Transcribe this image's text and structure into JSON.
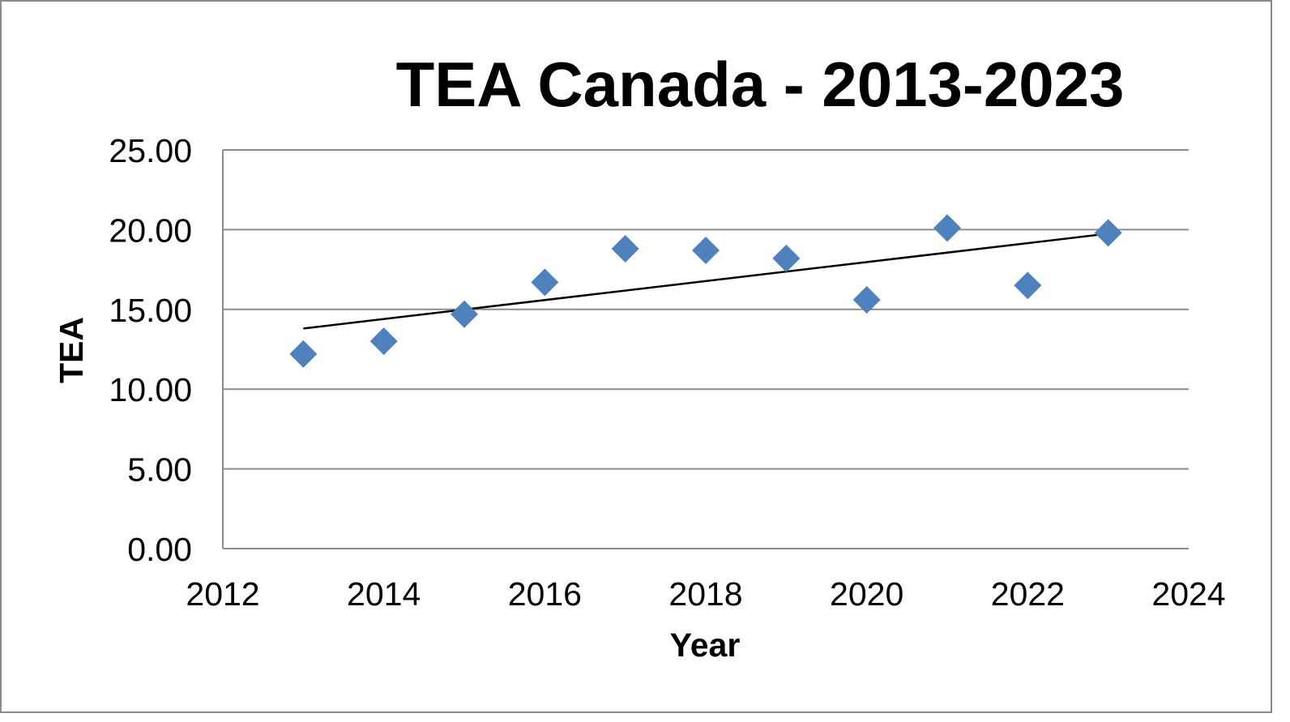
{
  "chart_data": {
    "type": "scatter",
    "title": "TEA Canada - 2013-2023",
    "xlabel": "Year",
    "ylabel": "TEA",
    "xlim": [
      2012,
      2024
    ],
    "ylim": [
      0,
      25
    ],
    "x_ticks": [
      2012,
      2014,
      2016,
      2018,
      2020,
      2022,
      2024
    ],
    "x_tick_labels": [
      "2012",
      "2014",
      "2016",
      "2018",
      "2020",
      "2022",
      "2024"
    ],
    "y_ticks": [
      0,
      5,
      10,
      15,
      20,
      25
    ],
    "y_tick_labels": [
      "0.00",
      "5.00",
      "10.00",
      "15.00",
      "20.00",
      "25.00"
    ],
    "grid": "horizontal",
    "legend": "none",
    "series": [
      {
        "x": [
          2013,
          2014,
          2015,
          2016,
          2017,
          2018,
          2019,
          2020,
          2021,
          2022,
          2023
        ],
        "y": [
          12.2,
          13.0,
          14.7,
          16.7,
          18.8,
          18.7,
          18.2,
          15.6,
          20.1,
          16.5,
          19.8
        ],
        "marker": "diamond",
        "color": "#4f81bd"
      }
    ],
    "trendline": {
      "type": "linear",
      "x": [
        2013,
        2023
      ],
      "y": [
        13.8,
        19.75
      ],
      "color": "#000000"
    }
  }
}
